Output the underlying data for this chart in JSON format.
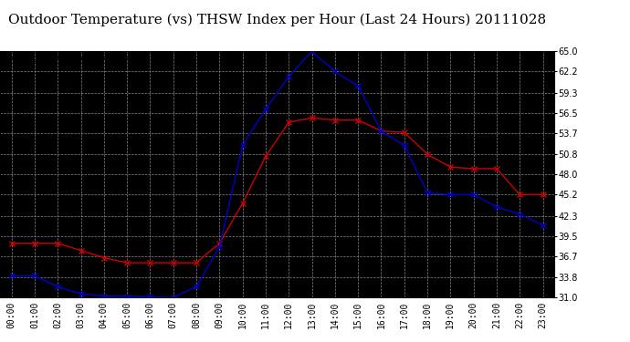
{
  "title": "Outdoor Temperature (vs) THSW Index per Hour (Last 24 Hours) 20111028",
  "hours": [
    "00:00",
    "01:00",
    "02:00",
    "03:00",
    "04:00",
    "05:00",
    "06:00",
    "07:00",
    "08:00",
    "09:00",
    "10:00",
    "11:00",
    "12:00",
    "13:00",
    "14:00",
    "15:00",
    "16:00",
    "17:00",
    "18:00",
    "19:00",
    "20:00",
    "21:00",
    "22:00",
    "23:00"
  ],
  "temp": [
    38.5,
    38.5,
    38.5,
    37.5,
    36.5,
    35.8,
    35.8,
    35.8,
    35.8,
    38.5,
    44.0,
    50.5,
    55.2,
    55.8,
    55.5,
    55.5,
    54.0,
    53.8,
    50.8,
    49.0,
    48.8,
    48.8,
    45.2,
    45.2
  ],
  "thsw": [
    34.0,
    34.0,
    32.5,
    31.5,
    31.2,
    31.2,
    31.1,
    31.0,
    32.5,
    38.0,
    52.0,
    57.0,
    61.5,
    65.0,
    62.2,
    60.2,
    54.0,
    52.0,
    45.5,
    45.2,
    45.2,
    43.5,
    42.5,
    41.0
  ],
  "ylim": [
    31.0,
    65.0
  ],
  "yticks": [
    31.0,
    33.8,
    36.7,
    39.5,
    42.3,
    45.2,
    48.0,
    50.8,
    53.7,
    56.5,
    59.3,
    62.2,
    65.0
  ],
  "temp_color": "#cc0000",
  "thsw_color": "#0000cc",
  "plot_bg_color": "#000000",
  "fig_bg_color": "#ffffff",
  "grid_color": "#888888",
  "title_color": "#000000",
  "title_fontsize": 11,
  "copyright_fontsize": 6.5,
  "tick_fontsize": 7,
  "marker": "x",
  "linewidth": 1.0,
  "markersize": 4,
  "markeredgewidth": 1.0
}
